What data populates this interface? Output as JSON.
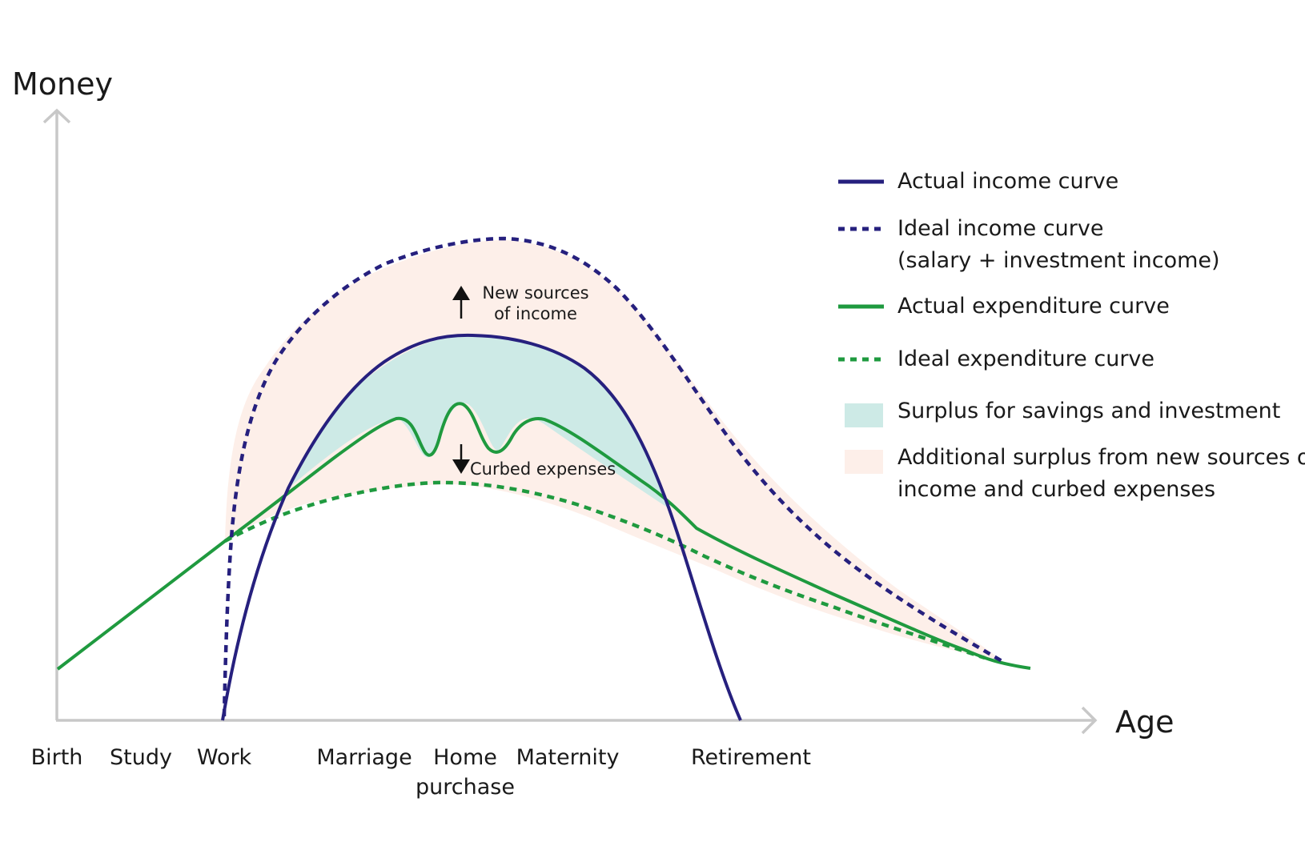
{
  "axes": {
    "y_label": "Money",
    "x_label": "Age",
    "axis_color": "#c8c8c8"
  },
  "life_stages": [
    {
      "line1": "Birth",
      "line2": ""
    },
    {
      "line1": "Study",
      "line2": ""
    },
    {
      "line1": "Work",
      "line2": ""
    },
    {
      "line1": "Marriage",
      "line2": ""
    },
    {
      "line1": "Home",
      "line2": "purchase"
    },
    {
      "line1": "Maternity",
      "line2": ""
    },
    {
      "line1": "Retirement",
      "line2": ""
    }
  ],
  "annotations": {
    "new_income_line1": "New sources",
    "new_income_line2": "of income",
    "curbed": "Curbed expenses"
  },
  "legend": [
    {
      "type": "solid-line",
      "color": "#26207e",
      "line1": "Actual income curve",
      "line2": ""
    },
    {
      "type": "dashed-line",
      "color": "#26207e",
      "line1": "Ideal income curve",
      "line2": "(salary + investment income)"
    },
    {
      "type": "solid-line",
      "color": "#1f9a3f",
      "line1": "Actual expenditure curve",
      "line2": ""
    },
    {
      "type": "dashed-line",
      "color": "#1f9a3f",
      "line1": "Ideal expenditure curve",
      "line2": ""
    },
    {
      "type": "swatch",
      "color": "#cdeae6",
      "line1": "Surplus for savings and investment",
      "line2": ""
    },
    {
      "type": "swatch",
      "color": "#fdefe9",
      "line1": "Additional surplus from new sources of",
      "line2": "income and curbed expenses"
    }
  ],
  "colors": {
    "income": "#26207e",
    "expenditure": "#1f9a3f",
    "surplus": "#cdeae6",
    "additional_surplus": "#fdefe9"
  }
}
